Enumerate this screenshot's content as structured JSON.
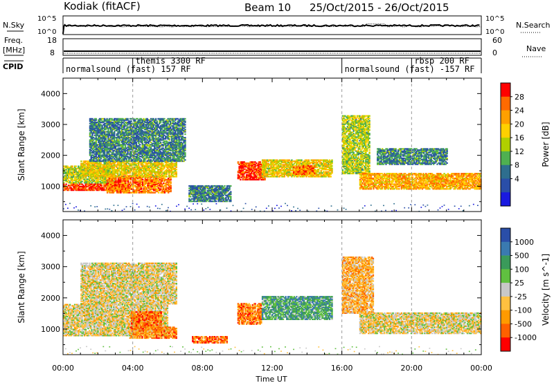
{
  "header": {
    "station": "Kodiak (fitACF)",
    "beam": "Beam 10",
    "date_range": "25/Oct/2015 - 26/Oct/2015"
  },
  "strips": {
    "nsky_label": "N.Sky",
    "nsky_ticks": [
      "10^5",
      "10^0"
    ],
    "nsearch_label": "N.Search",
    "nsearch_ticks": [
      "10^5",
      "10^0"
    ],
    "freq_label": "Freq.",
    "freq_unit": "[MHz]",
    "freq_ticks": [
      "18",
      "8"
    ],
    "nave_label": "Nave",
    "nave_ticks": [
      "60",
      "0"
    ],
    "cpid_label": "CPID"
  },
  "cpid_segments": [
    {
      "label": "normalsound (fast) 157 RF",
      "start_h": 0,
      "end_h": 16
    },
    {
      "label": "themis 3300 RF",
      "start_h": 4,
      "end_h": 16
    },
    {
      "label": "normalsound (fast) -157 RF",
      "start_h": 16,
      "end_h": 24
    },
    {
      "label": "rbsp 200 RF",
      "start_h": 20,
      "end_h": 24
    }
  ],
  "chart_data": [
    {
      "type": "heatmap",
      "quantity": "Power",
      "ylabel": "Slant Range [km]",
      "xlabel": "Time UT",
      "xlim_h": [
        0,
        24
      ],
      "ylim": [
        180,
        4500
      ],
      "yticks": [
        1000,
        2000,
        3000,
        4000
      ],
      "x_ticks": [
        "00:00",
        "04:00",
        "08:00",
        "12:00",
        "16:00",
        "20:00",
        "00:00"
      ],
      "colorbar": {
        "label": "Power [dB]",
        "ticks": [
          "28",
          "24",
          "20",
          "16",
          "12",
          "8",
          "4"
        ],
        "colors": [
          "#ff0000",
          "#ff6a00",
          "#ffa000",
          "#ffd000",
          "#b0d000",
          "#4fb050",
          "#2e6e8e",
          "#2a4ea8",
          "#1a1ae0"
        ]
      },
      "echo_regions": [
        {
          "t0": 0.0,
          "t1": 3.6,
          "r0": 860,
          "r1": 1080,
          "level": 0.9
        },
        {
          "t0": 0.0,
          "t1": 3.0,
          "r0": 1100,
          "r1": 1650,
          "level": 0.5
        },
        {
          "t0": 2.5,
          "t1": 6.2,
          "r0": 780,
          "r1": 1350,
          "level": 0.8
        },
        {
          "t0": 1.0,
          "t1": 6.5,
          "r0": 1300,
          "r1": 1800,
          "level": 0.6
        },
        {
          "t0": 1.5,
          "t1": 7.0,
          "r0": 1800,
          "r1": 3200,
          "level": 0.3
        },
        {
          "t0": 7.2,
          "t1": 9.6,
          "r0": 500,
          "r1": 1000,
          "level": 0.3
        },
        {
          "t0": 10.0,
          "t1": 11.6,
          "r0": 1200,
          "r1": 1800,
          "level": 0.9
        },
        {
          "t0": 11.4,
          "t1": 15.4,
          "r0": 1300,
          "r1": 1850,
          "level": 0.6
        },
        {
          "t0": 13.2,
          "t1": 14.4,
          "r0": 1380,
          "r1": 1650,
          "level": 0.8
        },
        {
          "t0": 16.0,
          "t1": 17.6,
          "r0": 1400,
          "r1": 3300,
          "level": 0.5
        },
        {
          "t0": 17.0,
          "t1": 24.0,
          "r0": 900,
          "r1": 1400,
          "level": 0.7
        },
        {
          "t0": 18.0,
          "t1": 22.0,
          "r0": 1700,
          "r1": 2200,
          "level": 0.3
        }
      ]
    },
    {
      "type": "heatmap",
      "quantity": "Velocity",
      "ylabel": "Slant Range [km]",
      "xlabel": "Time UT",
      "xlim_h": [
        0,
        24
      ],
      "ylim": [
        180,
        4500
      ],
      "yticks": [
        1000,
        2000,
        3000,
        4000
      ],
      "x_ticks": [
        "00:00",
        "04:00",
        "08:00",
        "12:00",
        "16:00",
        "20:00",
        "00:00"
      ],
      "colorbar": {
        "label": "Velocity [m s^-1]",
        "ticks": [
          "1000",
          "500",
          "100",
          "25",
          "-25",
          "-100",
          "-500",
          "-1000"
        ],
        "colors": [
          "#2a4ea8",
          "#3a7ab0",
          "#3a9a5a",
          "#60c040",
          "#c8c8c8",
          "#ffc040",
          "#ff9a00",
          "#ff6000",
          "#ff0000"
        ]
      },
      "echo_regions": [
        {
          "t0": 0.0,
          "t1": 6.0,
          "r0": 780,
          "r1": 1800,
          "level": 0.45
        },
        {
          "t0": 1.0,
          "t1": 6.5,
          "r0": 1800,
          "r1": 3100,
          "level": 0.45
        },
        {
          "t0": 3.9,
          "t1": 5.6,
          "r0": 1000,
          "r1": 1550,
          "level": 0.2
        },
        {
          "t0": 3.8,
          "t1": 6.5,
          "r0": 700,
          "r1": 1050,
          "level": 0.25
        },
        {
          "t0": 7.4,
          "t1": 9.4,
          "r0": 550,
          "r1": 750,
          "level": 0.2
        },
        {
          "t0": 10.0,
          "t1": 11.4,
          "r0": 1150,
          "r1": 1800,
          "level": 0.25
        },
        {
          "t0": 11.4,
          "t1": 15.4,
          "r0": 1300,
          "r1": 2050,
          "level": 0.7
        },
        {
          "t0": 16.0,
          "t1": 17.8,
          "r0": 1500,
          "r1": 3300,
          "level": 0.35
        },
        {
          "t0": 17.0,
          "t1": 24.0,
          "r0": 850,
          "r1": 1500,
          "level": 0.45
        }
      ]
    }
  ]
}
